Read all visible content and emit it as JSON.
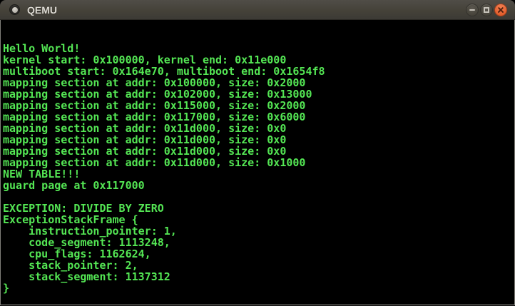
{
  "window": {
    "title": "QEMU",
    "icon": "qemu-window-icon",
    "controls": [
      {
        "name": "minimize",
        "icon": "minimize-icon"
      },
      {
        "name": "maximize",
        "icon": "maximize-icon"
      },
      {
        "name": "close",
        "icon": "close-icon"
      }
    ]
  },
  "terminal": {
    "lines": [
      "Hello World!",
      "kernel start: 0x100000, kernel end: 0x11e000",
      "multiboot start: 0x164e70, multiboot end: 0x1654f8",
      "mapping section at addr: 0x100000, size: 0x2000",
      "mapping section at addr: 0x102000, size: 0x13000",
      "mapping section at addr: 0x115000, size: 0x2000",
      "mapping section at addr: 0x117000, size: 0x6000",
      "mapping section at addr: 0x11d000, size: 0x0",
      "mapping section at addr: 0x11d000, size: 0x0",
      "mapping section at addr: 0x11d000, size: 0x0",
      "mapping section at addr: 0x11d000, size: 0x1000",
      "NEW TABLE!!!",
      "guard page at 0x117000",
      "",
      "EXCEPTION: DIVIDE BY ZERO",
      "ExceptionStackFrame {",
      "    instruction_pointer: 1,",
      "    code_segment: 1113248,",
      "    cpu_flags: 1162624,",
      "    stack_pointer: 2,",
      "    stack_segment: 1137312",
      "}"
    ]
  },
  "colors": {
    "text_green": "#54e654",
    "screen_background": "#000000",
    "titlebar_top": "#504d47",
    "titlebar_bottom": "#3c3a35",
    "close_button_orange": "#e05a28"
  }
}
